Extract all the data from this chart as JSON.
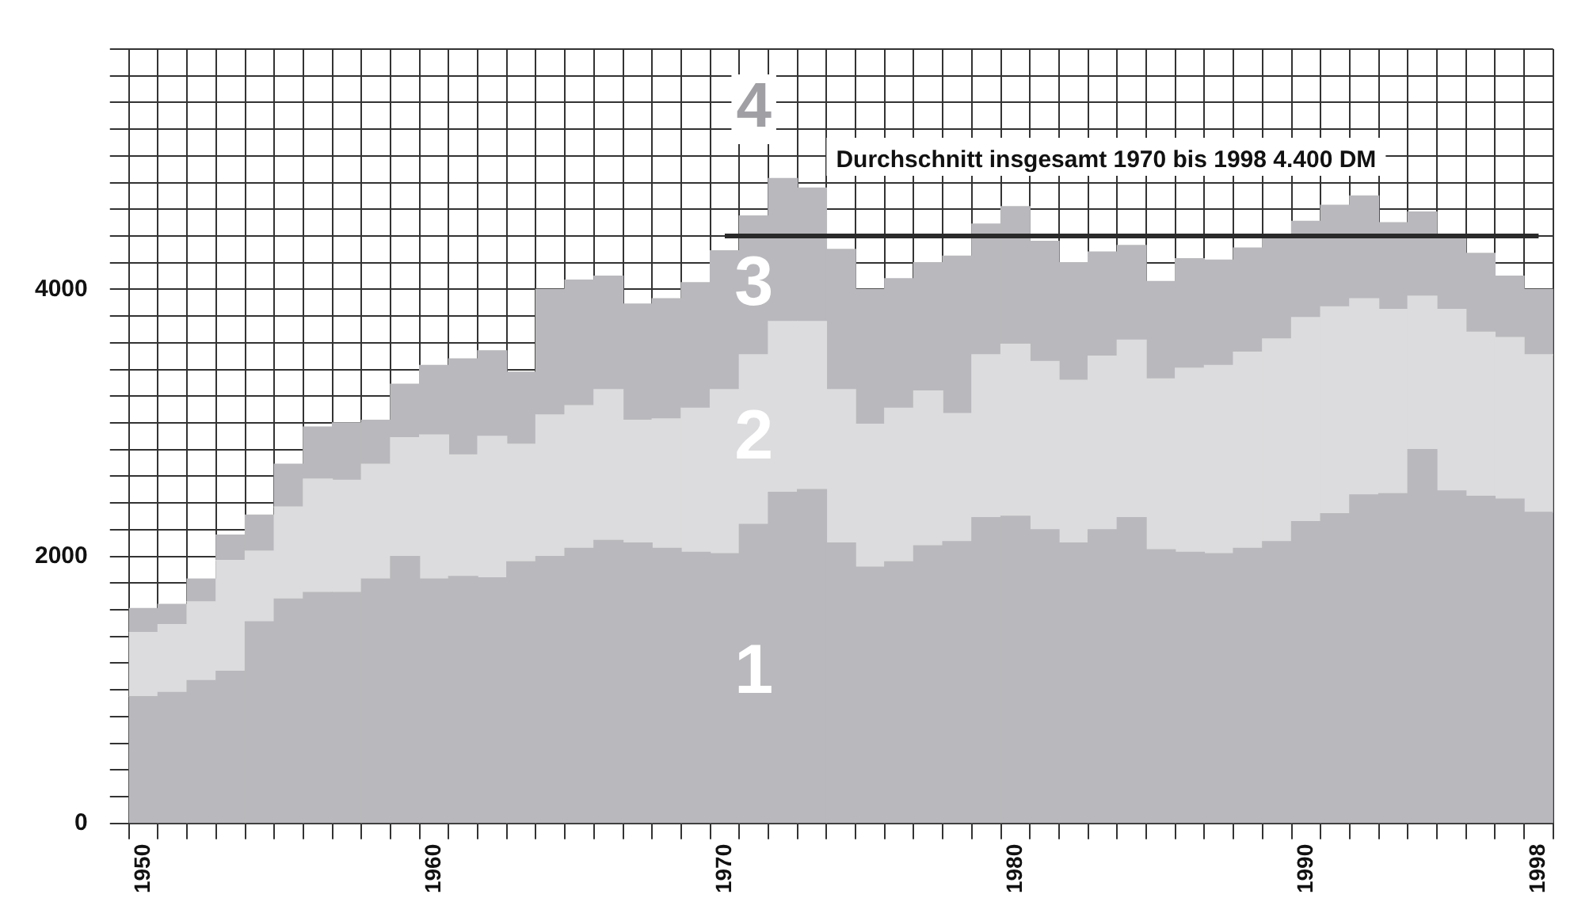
{
  "chart_data": {
    "type": "bar",
    "stacked": true,
    "categories": [
      "1950",
      null,
      null,
      null,
      null,
      null,
      null,
      null,
      null,
      null,
      "1960",
      null,
      null,
      null,
      null,
      null,
      null,
      null,
      null,
      null,
      "1970",
      null,
      null,
      null,
      null,
      null,
      null,
      null,
      null,
      null,
      "1980",
      null,
      null,
      null,
      null,
      null,
      null,
      null,
      null,
      null,
      "1990",
      null,
      null,
      null,
      null,
      null,
      null,
      null,
      "1998"
    ],
    "series": [
      {
        "name": "1",
        "color": "#b9b9bd",
        "values": [
          950,
          980,
          1070,
          1140,
          1510,
          1680,
          1730,
          1730,
          1830,
          2000,
          1830,
          1850,
          1840,
          1960,
          2000,
          2060,
          2120,
          2100,
          2060,
          2030,
          2020,
          2240,
          2480,
          2500,
          2100,
          1920,
          1960,
          2080,
          2110,
          2290,
          2300,
          2200,
          2100,
          2200,
          2290,
          2050,
          2030,
          2020,
          2060,
          2110,
          2260,
          2320,
          2460,
          2470,
          2800,
          2490,
          2450,
          2430,
          2330
        ]
      },
      {
        "name": "2",
        "color": "#dcdcde",
        "values": [
          480,
          510,
          590,
          830,
          530,
          690,
          850,
          840,
          860,
          890,
          1080,
          910,
          1060,
          880,
          1060,
          1070,
          1130,
          920,
          970,
          1080,
          1230,
          1270,
          1280,
          1260,
          1150,
          1070,
          1150,
          1160,
          960,
          1220,
          1290,
          1260,
          1220,
          1300,
          1330,
          1280,
          1380,
          1410,
          1470,
          1520,
          1530,
          1550,
          1470,
          1380,
          1150,
          1360,
          1230,
          1210,
          1180
        ]
      },
      {
        "name": "3",
        "color": "#b9b9bd",
        "values": [
          180,
          150,
          170,
          190,
          270,
          320,
          390,
          430,
          330,
          400,
          520,
          720,
          640,
          540,
          940,
          940,
          850,
          870,
          900,
          940,
          1040,
          1040,
          1070,
          1000,
          1050,
          1010,
          970,
          960,
          1180,
          980,
          1030,
          900,
          880,
          780,
          710,
          730,
          820,
          790,
          780,
          750,
          720,
          760,
          770,
          650,
          630,
          530,
          590,
          460,
          490
        ]
      },
      {
        "type": "line",
        "color": "#2a2a2a",
        "values": [
          null,
          null,
          null,
          null,
          null,
          null,
          null,
          null,
          null,
          null,
          null,
          null,
          null,
          null,
          null,
          null,
          null,
          null,
          null,
          null,
          4400,
          4400,
          4400,
          4400,
          4400,
          4400,
          4400,
          4400,
          4400,
          4400,
          4400,
          4400,
          4400,
          4400,
          4400,
          4400,
          4400,
          4400,
          4400,
          4400,
          4400,
          4400,
          4400,
          4400,
          4400,
          4400,
          4400,
          4400,
          4400
        ]
      }
    ],
    "ylim": [
      0,
      5800
    ],
    "yticks": [
      0,
      {
        "value": 200,
        "label": null
      },
      {
        "value": 400,
        "label": null
      },
      {
        "value": 600,
        "label": null
      },
      {
        "value": 800,
        "label": null
      },
      {
        "value": 1000,
        "label": null
      },
      {
        "value": 1200,
        "label": null
      },
      {
        "value": 1400,
        "label": null
      },
      {
        "value": 1600,
        "label": null
      },
      {
        "value": 1800,
        "label": null
      },
      2000,
      {
        "value": 2200,
        "label": null
      },
      {
        "value": 2400,
        "label": null
      },
      {
        "value": 2600,
        "label": null
      },
      {
        "value": 2800,
        "label": null
      },
      {
        "value": 3000,
        "label": null
      },
      {
        "value": 3200,
        "label": null
      },
      {
        "value": 3400,
        "label": null
      },
      {
        "value": 3600,
        "label": null
      },
      {
        "value": 3800,
        "label": null
      },
      4000,
      {
        "value": 4200,
        "label": null
      },
      {
        "value": 4400,
        "label": null
      },
      {
        "value": 4600,
        "label": null
      },
      {
        "value": 4800,
        "label": null
      },
      {
        "value": 5000,
        "label": null
      },
      {
        "value": 5200,
        "label": null
      },
      {
        "value": 5400,
        "label": null
      },
      {
        "value": 5600,
        "label": null
      },
      {
        "value": 5800,
        "label": null
      }
    ],
    "grid": true,
    "legend": false,
    "annotations": [
      "Durchschnitt insgesamt 1970 bis 1998 4.400 DM",
      "4"
    ]
  }
}
